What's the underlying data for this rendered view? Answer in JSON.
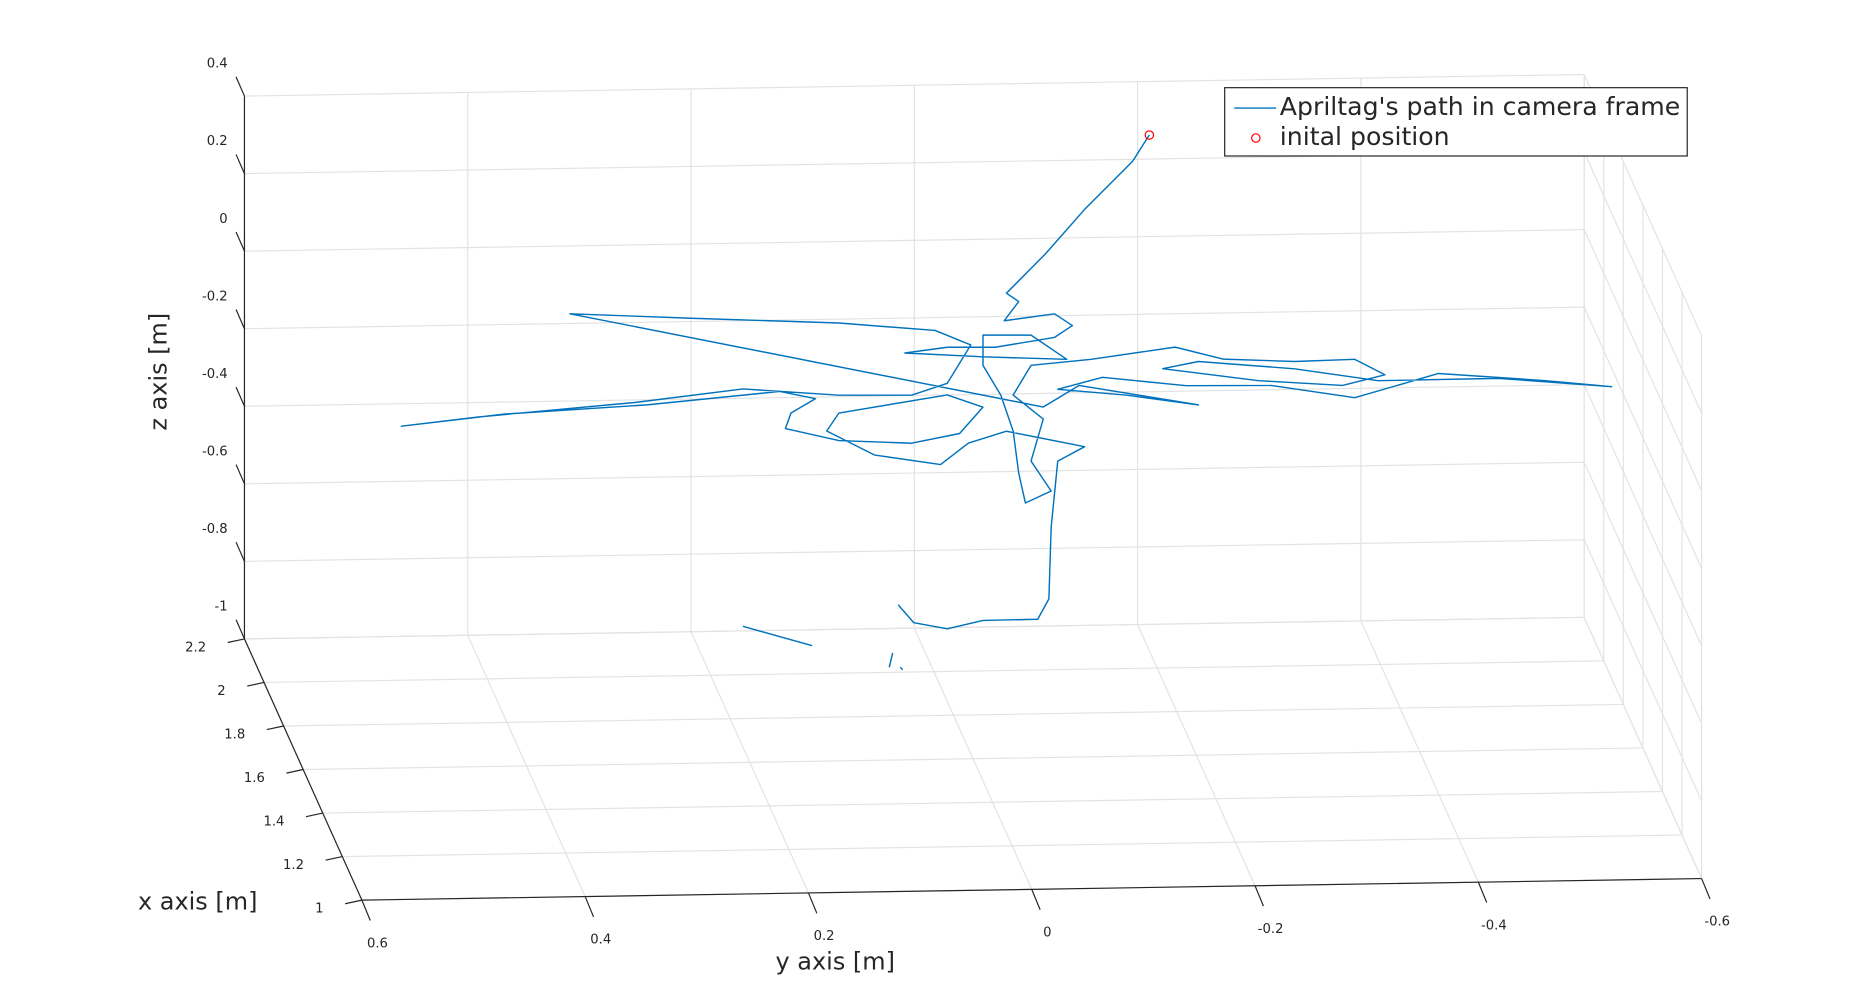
{
  "chart_data": {
    "type": "line3d",
    "xlabel": "x axis [m]",
    "ylabel": "y axis [m]",
    "zlabel": "z axis [m]",
    "xlim": [
      1,
      2.2
    ],
    "ylim": [
      -0.6,
      0.6
    ],
    "zlim": [
      -1,
      0.4
    ],
    "xticks": [
      1,
      1.2,
      1.4,
      1.6,
      1.8,
      2,
      2.2
    ],
    "yticks": [
      -0.6,
      -0.4,
      -0.2,
      0,
      0.2,
      0.4,
      0.6
    ],
    "zticks": [
      -1,
      -0.8,
      -0.6,
      -0.4,
      -0.2,
      0,
      0.2,
      0.4
    ],
    "grid": true,
    "legend": "northeast",
    "series": [
      {
        "name": "Apriltag's path in camera frame",
        "color": "#0072bd",
        "x": [
          2,
          2,
          2,
          2,
          2,
          2,
          2,
          2,
          2,
          2,
          2,
          2,
          2,
          2,
          2,
          2,
          2,
          2,
          2,
          2,
          2,
          2,
          2,
          2,
          2,
          2,
          2,
          2,
          2,
          2,
          2,
          2,
          2,
          2,
          2,
          2,
          2,
          2,
          2,
          2,
          2,
          2,
          2,
          2,
          2,
          2,
          2,
          2,
          2,
          2,
          2,
          2,
          2,
          2,
          2,
          2,
          2,
          2,
          2,
          2,
          2,
          2,
          2,
          2,
          2,
          2,
          2,
          2,
          2,
          2,
          2,
          2,
          2,
          2,
          2,
          2,
          2,
          2,
          2,
          2,
          2,
          2,
          2,
          2,
          2,
          2,
          2,
          2,
          2,
          2,
          null,
          2,
          2,
          null,
          2,
          2,
          null,
          2,
          2
        ],
        "y": [
          -0.193,
          -0.178,
          -0.135,
          -0.1,
          -0.065,
          -0.076,
          -0.063,
          -0.108,
          -0.124,
          -0.108,
          -0.055,
          -0.012,
          0.026,
          -0.044,
          -0.119,
          -0.087,
          -0.044,
          -0.044,
          -0.06,
          -0.071,
          -0.076,
          -0.082,
          -0.105,
          -0.087,
          -0.098,
          -0.071,
          -0.087,
          -0.141,
          -0.216,
          -0.259,
          -0.323,
          -0.377,
          -0.404,
          -0.366,
          -0.291,
          -0.205,
          -0.237,
          -0.323,
          -0.398,
          -0.506,
          -0.607,
          -0.548,
          -0.452,
          -0.377,
          -0.302,
          -0.226,
          -0.151,
          -0.111,
          -0.173,
          -0.237,
          -0.13,
          -0.098,
          0.326,
          0.214,
          0.085,
          -0.001,
          -0.033,
          -0.012,
          0.02,
          0.085,
          0.171,
          0.267,
          0.407,
          0.477,
          0.385,
          0.257,
          0.138,
          0.106,
          0.128,
          0.133,
          0.085,
          0.02,
          -0.023,
          -0.044,
          -0.012,
          0.085,
          0.096,
          0.053,
          -0.006,
          -0.031,
          -0.065,
          -0.135,
          -0.111,
          -0.105,
          -0.103,
          -0.093,
          -0.044,
          -0.012,
          0.018,
          0.032,
          null,
          0.171,
          0.109,
          null,
          0.037,
          0.04,
          null,
          0.03,
          0.028
        ],
        "z": [
          0.375,
          0.308,
          0.186,
          0.073,
          -0.027,
          -0.049,
          -0.098,
          -0.082,
          -0.113,
          -0.143,
          -0.166,
          -0.164,
          -0.177,
          -0.19,
          -0.2,
          -0.136,
          -0.134,
          -0.212,
          -0.29,
          -0.383,
          -0.491,
          -0.569,
          -0.539,
          -0.461,
          -0.353,
          -0.29,
          -0.214,
          -0.201,
          -0.173,
          -0.206,
          -0.215,
          -0.212,
          -0.253,
          -0.279,
          -0.263,
          -0.228,
          -0.211,
          -0.234,
          -0.268,
          -0.267,
          -0.293,
          -0.275,
          -0.252,
          -0.311,
          -0.276,
          -0.273,
          -0.248,
          -0.277,
          -0.295,
          -0.323,
          -0.268,
          -0.322,
          -0.062,
          -0.079,
          -0.097,
          -0.12,
          -0.159,
          -0.257,
          -0.286,
          -0.283,
          -0.263,
          -0.293,
          -0.324,
          -0.345,
          -0.318,
          -0.3,
          -0.271,
          -0.291,
          -0.327,
          -0.367,
          -0.4,
          -0.41,
          -0.387,
          -0.32,
          -0.287,
          -0.329,
          -0.375,
          -0.439,
          -0.466,
          -0.412,
          -0.383,
          -0.426,
          -0.462,
          -0.632,
          -0.817,
          -0.869,
          -0.87,
          -0.89,
          -0.873,
          -0.826,
          null,
          -0.875,
          -0.928,
          null,
          -0.95,
          -0.987,
          null,
          -0.987,
          -0.994
        ]
      },
      {
        "name": "inital position",
        "color": "#ff0000",
        "marker": "o",
        "x": [
          2
        ],
        "y": [
          -0.193
        ],
        "z": [
          0.375
        ]
      }
    ]
  }
}
